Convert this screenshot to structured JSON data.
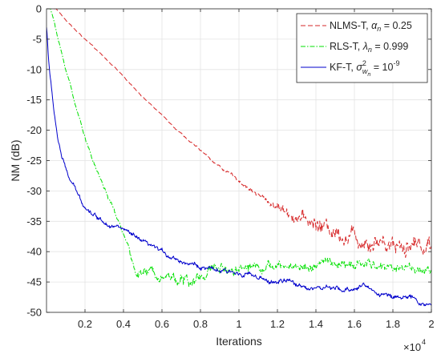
{
  "chart_data": {
    "type": "line",
    "xlabel": "Iterations",
    "ylabel": "NM (dB)",
    "x_multiplier": {
      "base": "×10",
      "exponent": "4"
    },
    "xlim": [
      0,
      2
    ],
    "ylim": [
      -50,
      0
    ],
    "xticks": [
      0.2,
      0.4,
      0.6,
      0.8,
      1,
      1.2,
      1.4,
      1.6,
      1.8,
      2
    ],
    "xtick_labels": [
      "0.2",
      "0.4",
      "0.6",
      "0.8",
      "1",
      "1.2",
      "1.4",
      "1.6",
      "1.8",
      "2"
    ],
    "yticks": [
      0,
      -5,
      -10,
      -15,
      -20,
      -25,
      -30,
      -35,
      -40,
      -45,
      -50
    ],
    "ytick_labels": [
      "0",
      "-5",
      "-10",
      "-15",
      "-20",
      "-25",
      "-30",
      "-35",
      "-40",
      "-45",
      "-50"
    ],
    "grid": true,
    "legend_position": "top-right",
    "series": [
      {
        "name": "NLMS-T, αn = 0.25",
        "legend": {
          "pre": "NLMS-T, ",
          "sym": "α",
          "sub": "n",
          "post": " = 0.25"
        },
        "color": "#d62728",
        "dash": "dashed",
        "x": [
          0,
          0.05,
          0.1,
          0.15,
          0.2,
          0.25,
          0.3,
          0.35,
          0.4,
          0.45,
          0.5,
          0.55,
          0.6,
          0.65,
          0.7,
          0.75,
          0.8,
          0.85,
          0.9,
          0.95,
          1.0,
          1.05,
          1.1,
          1.15,
          1.2,
          1.25,
          1.3,
          1.35,
          1.4,
          1.45,
          1.5,
          1.55,
          1.6,
          1.65,
          1.7,
          1.75,
          1.8,
          1.85,
          1.9,
          1.95,
          2.0
        ],
        "y": [
          0,
          0,
          -1.8,
          -3.5,
          -5,
          -6.5,
          -8,
          -9.5,
          -11.2,
          -12.8,
          -14.5,
          -16,
          -17.5,
          -19,
          -20.5,
          -22,
          -23.3,
          -24.7,
          -26,
          -27.2,
          -28.3,
          -29.5,
          -30.7,
          -31.7,
          -32.6,
          -33.4,
          -34.2,
          -34.9,
          -35.5,
          -36,
          -36.5,
          -37,
          -37.4,
          -37.8,
          -38,
          -38.2,
          -38.4,
          -38.6,
          -38.7,
          -38.8,
          -38.9
        ],
        "noise_amp": [
          0,
          0,
          0.1,
          0.1,
          0.1,
          0.1,
          0.1,
          0.1,
          0.1,
          0.1,
          0.1,
          0.1,
          0.1,
          0.15,
          0.15,
          0.15,
          0.2,
          0.2,
          0.25,
          0.3,
          0.35,
          0.4,
          0.5,
          0.6,
          0.8,
          1.0,
          1.2,
          1.4,
          1.5,
          1.6,
          1.6,
          1.7,
          1.7,
          1.7,
          1.8,
          1.8,
          1.8,
          1.8,
          1.8,
          1.8,
          1.8
        ]
      },
      {
        "name": "RLS-T, λn = 0.999",
        "legend": {
          "pre": "RLS-T, ",
          "sym": "λ",
          "sub": "n",
          "post": " = 0.999"
        },
        "color": "#00e000",
        "dash": "dashdot",
        "x": [
          0,
          0.02,
          0.04,
          0.06,
          0.08,
          0.1,
          0.12,
          0.14,
          0.16,
          0.18,
          0.2,
          0.22,
          0.24,
          0.26,
          0.28,
          0.3,
          0.32,
          0.34,
          0.36,
          0.38,
          0.4,
          0.42,
          0.44,
          0.46,
          0.5,
          0.55,
          0.6,
          0.65,
          0.7,
          0.75,
          0.8,
          0.85,
          0.9,
          0.95,
          1.0,
          1.05,
          1.1,
          1.15,
          1.2,
          1.25,
          1.3,
          1.35,
          1.4,
          1.45,
          1.5,
          1.55,
          1.6,
          1.65,
          1.7,
          1.75,
          1.8,
          1.85,
          1.9,
          1.95,
          2.0
        ],
        "y": [
          0,
          0,
          -2,
          -5,
          -7.5,
          -10,
          -12,
          -14.5,
          -17,
          -19,
          -21,
          -23,
          -25,
          -26.5,
          -28,
          -29.5,
          -31,
          -32.5,
          -34,
          -35.5,
          -37,
          -39,
          -41.5,
          -43,
          -43.5,
          -43.5,
          -43.5,
          -44,
          -44.5,
          -45.5,
          -44,
          -43,
          -42.5,
          -42.8,
          -42.5,
          -42.3,
          -42.2,
          -42.4,
          -42.6,
          -42.5,
          -42.3,
          -42.6,
          -42.2,
          -41.8,
          -42,
          -42.4,
          -42.5,
          -42,
          -42.3,
          -42.5,
          -42.6,
          -42.4,
          -42.7,
          -43,
          -43.2
        ],
        "noise_amp": [
          0,
          0,
          0.2,
          0.2,
          0.2,
          0.2,
          0.2,
          0.25,
          0.25,
          0.25,
          0.3,
          0.3,
          0.3,
          0.3,
          0.3,
          0.35,
          0.35,
          0.4,
          0.4,
          0.4,
          0.5,
          0.6,
          0.8,
          0.9,
          0.9,
          0.9,
          0.9,
          1.0,
          1.2,
          1.4,
          1.0,
          0.9,
          0.9,
          0.9,
          0.9,
          0.9,
          0.9,
          0.9,
          0.9,
          0.9,
          0.9,
          0.9,
          0.9,
          0.9,
          0.9,
          0.9,
          0.9,
          0.9,
          0.9,
          0.9,
          0.9,
          0.9,
          0.9,
          0.9,
          0.9
        ]
      },
      {
        "name": "KF-T, σ²wn = 10⁻⁹",
        "legend": {
          "pre": "KF-T, ",
          "sym": "σ",
          "sup": "2",
          "sub": "w",
          "subsub": "n",
          "post": " = 10",
          "postsup": "-9"
        },
        "color": "#0000cc",
        "dash": "solid",
        "x": [
          0,
          0.005,
          0.01,
          0.02,
          0.03,
          0.04,
          0.05,
          0.06,
          0.08,
          0.1,
          0.12,
          0.14,
          0.16,
          0.18,
          0.2,
          0.25,
          0.3,
          0.35,
          0.4,
          0.45,
          0.5,
          0.55,
          0.6,
          0.65,
          0.7,
          0.75,
          0.8,
          0.85,
          0.9,
          0.95,
          1.0,
          1.05,
          1.1,
          1.15,
          1.2,
          1.25,
          1.3,
          1.35,
          1.4,
          1.45,
          1.5,
          1.55,
          1.6,
          1.65,
          1.7,
          1.75,
          1.8,
          1.85,
          1.9,
          1.95,
          2.0
        ],
        "y": [
          -3,
          -5,
          -8,
          -11.5,
          -14.5,
          -17,
          -19.5,
          -21.5,
          -24.5,
          -26.5,
          -28,
          -29.2,
          -30.5,
          -31.5,
          -32.5,
          -34,
          -35,
          -35.7,
          -36.3,
          -37.5,
          -38.5,
          -39.3,
          -40,
          -40.8,
          -41.5,
          -42,
          -42.5,
          -43,
          -43.2,
          -43.5,
          -43.5,
          -43.5,
          -44.5,
          -45,
          -45,
          -44.8,
          -45.5,
          -45.8,
          -46,
          -46,
          -46.2,
          -46.5,
          -46,
          -45.5,
          -46.5,
          -47,
          -47.5,
          -47.2,
          -47.8,
          -48.5,
          -49
        ]
      }
    ]
  }
}
